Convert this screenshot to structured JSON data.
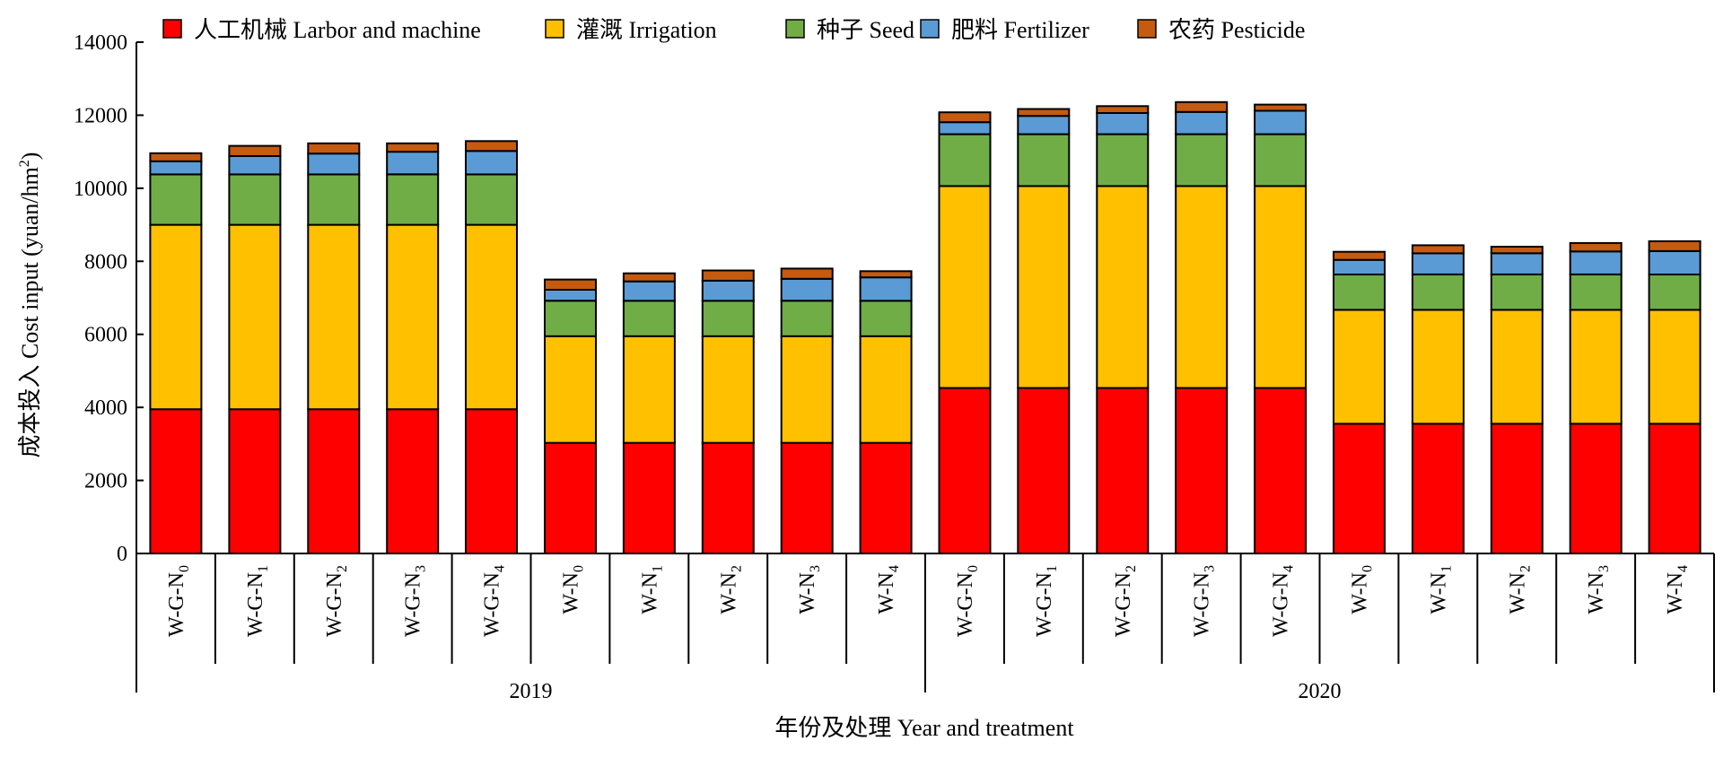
{
  "chart_data": {
    "type": "bar",
    "stacked": true,
    "title": "",
    "ylabel": "成本投入 Cost input (yuan/hm²)",
    "ylabel_parts": {
      "main": "成本投入 Cost input (yuan/hm",
      "sup": "2",
      "tail": ")"
    },
    "xlabel": "年份及处理 Year and treatment",
    "ylim": [
      0,
      14000
    ],
    "yticks": [
      0,
      2000,
      4000,
      6000,
      8000,
      10000,
      12000,
      14000
    ],
    "legend_position": "top",
    "grid": false,
    "groups": [
      {
        "label": "2019",
        "start": 0,
        "count": 10
      },
      {
        "label": "2020",
        "start": 10,
        "count": 10
      }
    ],
    "categories": [
      "W-G-N0",
      "W-G-N1",
      "W-G-N2",
      "W-G-N3",
      "W-G-N4",
      "W-N0",
      "W-N1",
      "W-N2",
      "W-N3",
      "W-N4",
      "W-G-N0",
      "W-G-N1",
      "W-G-N2",
      "W-G-N3",
      "W-G-N4",
      "W-N0",
      "W-N1",
      "W-N2",
      "W-N3",
      "W-N4"
    ],
    "category_parts": [
      {
        "base": "W-G-N",
        "sub": "0"
      },
      {
        "base": "W-G-N",
        "sub": "1"
      },
      {
        "base": "W-G-N",
        "sub": "2"
      },
      {
        "base": "W-G-N",
        "sub": "3"
      },
      {
        "base": "W-G-N",
        "sub": "4"
      },
      {
        "base": "W-N",
        "sub": "0"
      },
      {
        "base": "W-N",
        "sub": "1"
      },
      {
        "base": "W-N",
        "sub": "2"
      },
      {
        "base": "W-N",
        "sub": "3"
      },
      {
        "base": "W-N",
        "sub": "4"
      },
      {
        "base": "W-G-N",
        "sub": "0"
      },
      {
        "base": "W-G-N",
        "sub": "1"
      },
      {
        "base": "W-G-N",
        "sub": "2"
      },
      {
        "base": "W-G-N",
        "sub": "3"
      },
      {
        "base": "W-G-N",
        "sub": "4"
      },
      {
        "base": "W-N",
        "sub": "0"
      },
      {
        "base": "W-N",
        "sub": "1"
      },
      {
        "base": "W-N",
        "sub": "2"
      },
      {
        "base": "W-N",
        "sub": "3"
      },
      {
        "base": "W-N",
        "sub": "4"
      }
    ],
    "series": [
      {
        "name": "人工机械 Larbor and machine",
        "color": "#ff0000",
        "values": [
          3950,
          3950,
          3950,
          3950,
          3950,
          3030,
          3030,
          3030,
          3030,
          3030,
          4530,
          4530,
          4530,
          4530,
          4530,
          3550,
          3550,
          3550,
          3550,
          3550
        ]
      },
      {
        "name": "灌溉 Irrigation",
        "color": "#ffc000",
        "values": [
          5050,
          5050,
          5050,
          5050,
          5050,
          2920,
          2920,
          2920,
          2920,
          2920,
          5530,
          5530,
          5530,
          5530,
          5530,
          3120,
          3120,
          3120,
          3120,
          3120
        ]
      },
      {
        "name": "种子 Seed",
        "color": "#70ad47",
        "values": [
          1380,
          1380,
          1380,
          1380,
          1380,
          970,
          970,
          970,
          970,
          970,
          1420,
          1420,
          1420,
          1420,
          1420,
          970,
          970,
          970,
          970,
          970
        ]
      },
      {
        "name": "肥料 Fertilizer",
        "color": "#5b9bd5",
        "values": [
          360,
          500,
          570,
          620,
          640,
          300,
          530,
          550,
          600,
          640,
          330,
          500,
          580,
          610,
          640,
          400,
          580,
          580,
          630,
          640
        ]
      },
      {
        "name": "农药 Pesticide",
        "color": "#c55a11",
        "values": [
          220,
          280,
          280,
          230,
          270,
          280,
          220,
          280,
          280,
          170,
          270,
          190,
          190,
          270,
          170,
          220,
          220,
          180,
          230,
          270
        ]
      }
    ]
  }
}
